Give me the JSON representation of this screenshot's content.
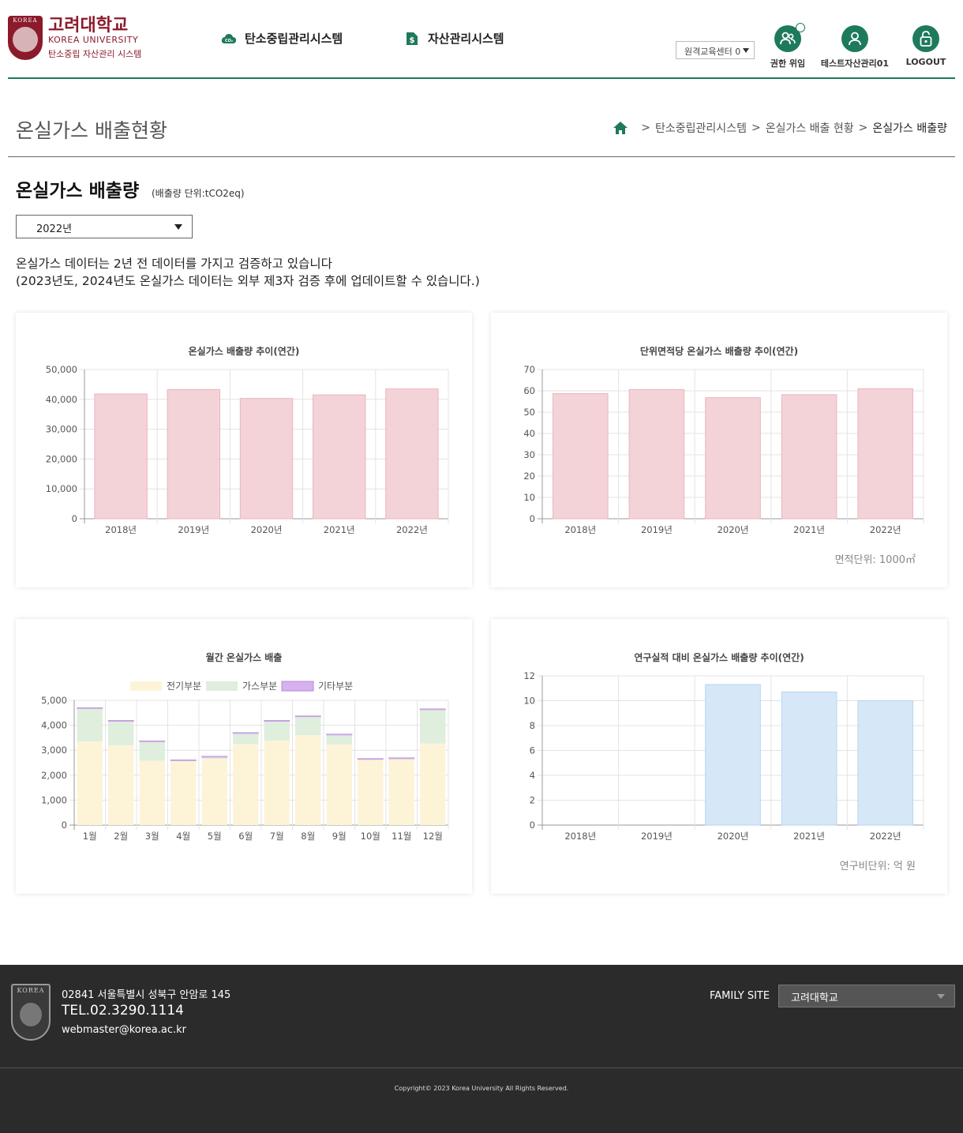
{
  "header": {
    "logo": {
      "seal_text": "KOREA",
      "kr": "고려대학교",
      "en": "KOREA UNIVERSITY",
      "sub": "탄소중립 자산관리 시스템"
    },
    "nav": [
      {
        "label": "탄소중립관리시스템",
        "icon": "cloud-co2-icon"
      },
      {
        "label": "자산관리시스템",
        "icon": "money-file-icon"
      }
    ],
    "center_select": "원격교육센터 0",
    "utils": [
      {
        "label": "권한 위임",
        "icon": "users-shield-icon"
      },
      {
        "label": "테스트자산관리01",
        "icon": "user-icon"
      },
      {
        "label": "LOGOUT",
        "icon": "unlock-icon"
      }
    ]
  },
  "page": {
    "title": "온실가스 배출현황",
    "breadcrumb": [
      "탄소중립관리시스템",
      "온실가스 배출 현황",
      "온실가스 배출량"
    ],
    "section_title": "온실가스 배출량",
    "section_unit": "(배출량 단위:tCO2eq)",
    "year_select": "2022년",
    "notice": [
      "온실가스 데이터는 2년 전 데이터를 가지고 검증하고 있습니다",
      "(2023년도, 2024년도 온실가스 데이터는 외부 제3자 검증 후에 업데이트할 수 있습니다.)"
    ]
  },
  "chart_data": [
    {
      "type": "bar",
      "title": "온실가스 배출량 추이(연간)",
      "categories": [
        "2018년",
        "2019년",
        "2020년",
        "2021년",
        "2022년"
      ],
      "values": [
        41800,
        43300,
        40300,
        41500,
        43500
      ],
      "ylim": [
        0,
        50000
      ],
      "yticks": [
        0,
        10000,
        20000,
        30000,
        40000,
        50000
      ],
      "ytick_labels": [
        "0",
        "10,000",
        "20,000",
        "30,000",
        "40,000",
        "50,000"
      ],
      "color": "#f4d3d8"
    },
    {
      "type": "bar",
      "title": "단위면적당 온실가스 배출량 추이(연간)",
      "categories": [
        "2018년",
        "2019년",
        "2020년",
        "2021년",
        "2022년"
      ],
      "values": [
        58.7,
        60.6,
        56.8,
        58.2,
        61.0
      ],
      "ylim": [
        0,
        70
      ],
      "yticks": [
        0,
        10,
        20,
        30,
        40,
        50,
        60,
        70
      ],
      "ytick_labels": [
        "0",
        "10",
        "20",
        "30",
        "40",
        "50",
        "60",
        "70"
      ],
      "color": "#f4d3d8",
      "note": "면적단위: 1000㎡"
    },
    {
      "type": "bar",
      "stacked": true,
      "title": "월간 온실가스 배출",
      "categories": [
        "1월",
        "2월",
        "3월",
        "4월",
        "5월",
        "6월",
        "7월",
        "8월",
        "9월",
        "10월",
        "11월",
        "12월"
      ],
      "series": [
        {
          "name": "전기부분",
          "color": "#fdf4d8",
          "values": [
            3350,
            3200,
            2580,
            2560,
            2660,
            3250,
            3380,
            3600,
            3230,
            2600,
            2620,
            3270
          ]
        },
        {
          "name": "가스부분",
          "color": "#dfeedd",
          "values": [
            1320,
            960,
            760,
            20,
            60,
            420,
            780,
            740,
            380,
            30,
            40,
            1350
          ]
        },
        {
          "name": "기타부분",
          "color": "#d7b0f0",
          "values": [
            40,
            40,
            40,
            40,
            40,
            40,
            40,
            40,
            40,
            40,
            40,
            40
          ]
        }
      ],
      "ylim": [
        0,
        5000
      ],
      "yticks": [
        0,
        1000,
        2000,
        3000,
        4000,
        5000
      ],
      "ytick_labels": [
        "0",
        "1,000",
        "2,000",
        "3,000",
        "4,000",
        "5,000"
      ],
      "legend": "top"
    },
    {
      "type": "bar",
      "title": "연구실적 대비 온실가스 배출량 추이(연간)",
      "categories": [
        "2018년",
        "2019년",
        "2020년",
        "2021년",
        "2022년"
      ],
      "values": [
        0,
        0,
        11.3,
        10.7,
        10.0
      ],
      "ylim": [
        0,
        12
      ],
      "yticks": [
        0,
        2,
        4,
        6,
        8,
        10,
        12
      ],
      "ytick_labels": [
        "0",
        "2",
        "4",
        "6",
        "8",
        "10",
        "12"
      ],
      "color": "#d6e8f8",
      "note": "연구비단위: 억 원"
    }
  ],
  "footer": {
    "seal_text": "KOREA",
    "address": "02841 서울특별시 성북구 안암로 145",
    "tel": "TEL.02.3290.1114",
    "email": "webmaster@korea.ac.kr",
    "family_label": "FAMILY SITE",
    "family_select": "고려대학교",
    "copyright": "Copyright© 2023 Korea University All Rights Reserved."
  }
}
